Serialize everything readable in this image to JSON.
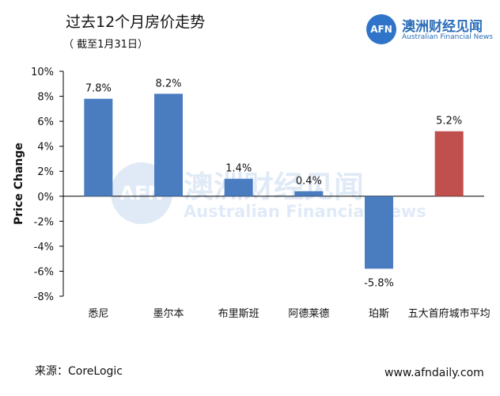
{
  "header": {
    "title": "过去12个月房价走势",
    "subtitle": "（ 截至1月31日）"
  },
  "logo": {
    "mark": "AFN",
    "name_cn": "澳洲财经见闻",
    "name_en": "Australian Financial News"
  },
  "watermark": {
    "mark": "AFN",
    "name_cn": "澳洲财经见闻",
    "name_en": "Australian Financial News"
  },
  "footer": {
    "source": "来源：CoreLogic",
    "website": "www.afndaily.com"
  },
  "chart_data": {
    "type": "bar",
    "title": "",
    "xlabel": "",
    "ylabel": "Price Change",
    "categories": [
      "悉尼",
      "墨尔本",
      "布里斯班",
      "阿德莱德",
      "珀斯",
      "五大首府城市平均"
    ],
    "values": [
      7.8,
      8.2,
      1.4,
      0.4,
      -5.8,
      5.2
    ],
    "data_labels": [
      "7.8%",
      "8.2%",
      "1.4%",
      "0.4%",
      "-5.8%",
      "5.2%"
    ],
    "bar_colors": [
      "#4a7cc0",
      "#4a7cc0",
      "#4a7cc0",
      "#4a7cc0",
      "#4a7cc0",
      "#c0504d"
    ],
    "ylim": [
      -8,
      10
    ],
    "yticks": [
      10,
      8,
      6,
      4,
      2,
      0,
      -2,
      -4,
      -6,
      -8
    ],
    "ytick_labels": [
      "10%",
      "8%",
      "6%",
      "4%",
      "2%",
      "0%",
      "-2%",
      "-4%",
      "-6%",
      "-8%"
    ],
    "grid": false,
    "legend": false
  }
}
